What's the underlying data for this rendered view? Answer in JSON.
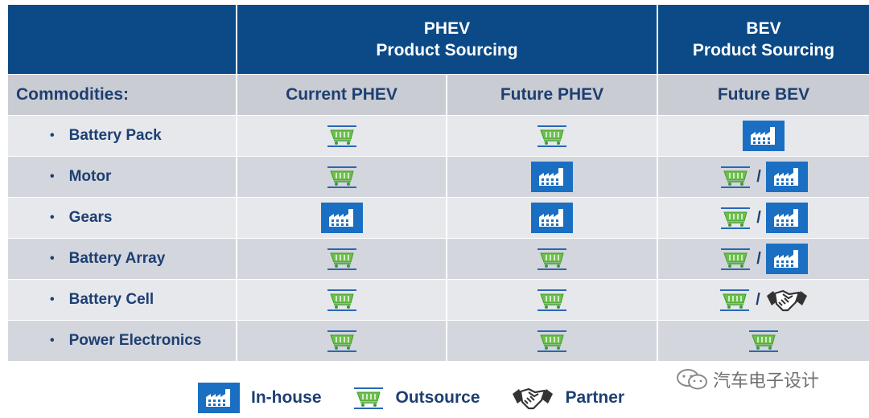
{
  "header": {
    "phev_line1": "PHEV",
    "phev_line2": "Product Sourcing",
    "bev_line1": "BEV",
    "bev_line2": "Product Sourcing"
  },
  "subheader": {
    "commodities": "Commodities:",
    "current_phev": "Current PHEV",
    "future_phev": "Future PHEV",
    "future_bev": "Future BEV"
  },
  "rows": [
    {
      "name": "Battery Pack",
      "current_phev": [
        "cart"
      ],
      "future_phev": [
        "cart"
      ],
      "future_bev": [
        "factory"
      ]
    },
    {
      "name": "Motor",
      "current_phev": [
        "cart"
      ],
      "future_phev": [
        "factory"
      ],
      "future_bev": [
        "cart",
        "factory"
      ]
    },
    {
      "name": "Gears",
      "current_phev": [
        "factory"
      ],
      "future_phev": [
        "factory"
      ],
      "future_bev": [
        "cart",
        "factory"
      ]
    },
    {
      "name": "Battery Array",
      "current_phev": [
        "cart"
      ],
      "future_phev": [
        "cart"
      ],
      "future_bev": [
        "cart",
        "factory"
      ]
    },
    {
      "name": "Battery Cell",
      "current_phev": [
        "cart"
      ],
      "future_phev": [
        "cart"
      ],
      "future_bev": [
        "cart",
        "handshake"
      ]
    },
    {
      "name": "Power Electronics",
      "current_phev": [
        "cart"
      ],
      "future_phev": [
        "cart"
      ],
      "future_bev": [
        "cart"
      ]
    }
  ],
  "bullet": "•",
  "separator": "/",
  "legend": {
    "inhouse": "In-house",
    "outsource": "Outsource",
    "partner": "Partner"
  },
  "watermark": "汽车电子设计",
  "colors": {
    "header_bg": "#0b4a86",
    "text_navy": "#1d3f73",
    "cart_green": "#5cb85c",
    "factory_blue": "#1b6fc2"
  }
}
